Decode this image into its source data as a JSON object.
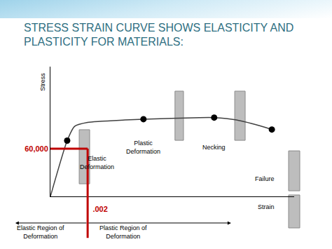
{
  "chart_data": {
    "type": "line",
    "title": "STRESS STRAIN CURVE SHOWS ELASTICITY AND PLASTICITY FOR MATERIALS:",
    "x_label": "Strain",
    "y_label": "Stress",
    "x": [
      0,
      0.0009,
      0.0013,
      0.002,
      0.004,
      0.005,
      0.008,
      0.0088,
      0.01,
      0.0115,
      0.0119
    ],
    "series": [
      {
        "type": "line",
        "color": "#404040",
        "values": [
          0,
          70000,
          88000,
          93000,
          96000,
          97000,
          99000,
          99000,
          96000,
          87000,
          84000
        ]
      },
      {
        "type": "scatter",
        "marker": "circle",
        "color": "#000000",
        "values": [
          null,
          70000,
          null,
          null,
          null,
          97000,
          null,
          99000,
          null,
          null,
          84000
        ]
      }
    ],
    "xlim": [
      0,
      0.0131
    ],
    "ylim": [
      0,
      163000
    ],
    "xticks": [
      {
        "value": 0.002,
        "label": ".002"
      }
    ],
    "yticks": [
      {
        "value": 60000,
        "label": "60,000"
      }
    ],
    "grid": false,
    "annotations": [
      "Elastic Deformation",
      "Plastic Deformation",
      "Necking",
      "Failure",
      "Elastic Region of Deformation",
      "Plastic Region of Deformation"
    ]
  }
}
